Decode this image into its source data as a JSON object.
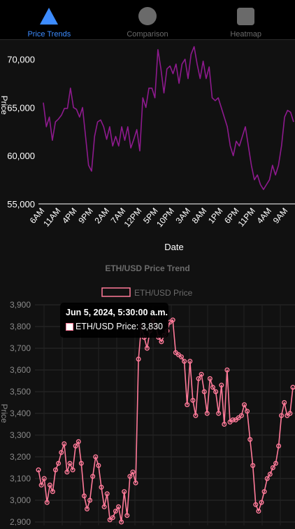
{
  "tabs": [
    {
      "label": "Price Trends",
      "icon": "triangle-icon",
      "active": true
    },
    {
      "label": "Comparison",
      "icon": "circle-icon",
      "active": false
    },
    {
      "label": "Heatmap",
      "icon": "square-icon",
      "active": false
    }
  ],
  "colors": {
    "accent": "#3d8cff",
    "line1": "#8e1a8e",
    "line2": "#ff7a99",
    "axis": "#ffffff",
    "muted": "#6b6b6b"
  },
  "chart_data": [
    {
      "type": "line",
      "title": "",
      "xlabel": "Date",
      "ylabel": "Price",
      "ylim": [
        55000,
        72000
      ],
      "yticks": [
        55000,
        60000,
        65000,
        70000
      ],
      "ytick_labels": [
        "55,000",
        "60,000",
        "65,000",
        "70,000"
      ],
      "xtick_labels": [
        "6AM",
        "11AM",
        "4PM",
        "9PM",
        "2AM",
        "7AM",
        "12PM",
        "5PM",
        "10PM",
        "3AM",
        "8AM",
        "1PM",
        "6PM",
        "11PM",
        "4AM",
        "9AM"
      ],
      "grid": false,
      "series": [
        {
          "values": [
            65500,
            63000,
            64000,
            61600,
            63500,
            63800,
            64200,
            64900,
            64900,
            67000,
            65000,
            64800,
            64000,
            65000,
            62000,
            59000,
            58400,
            62000,
            63500,
            63700,
            63000,
            61700,
            63000,
            61000,
            62000,
            61000,
            63000,
            61600,
            63000,
            60800,
            61700,
            62700,
            60500,
            66000,
            65000,
            67000,
            67000,
            66000,
            71000,
            69000,
            66500,
            69000,
            69300,
            68500,
            69500,
            67500,
            69500,
            70000,
            68000,
            70500,
            71300,
            69500,
            68000,
            69800,
            68000,
            69200,
            66000,
            65700,
            66000,
            65000,
            64000,
            63000,
            61000,
            60000,
            61500,
            61000,
            62000,
            63000,
            61000,
            59000,
            57500,
            58000,
            57000,
            56500,
            57000,
            57500,
            59000,
            58000,
            59000,
            61000,
            64000,
            64700,
            64500,
            63500
          ]
        }
      ]
    },
    {
      "type": "line",
      "title": "ETH/USD Price Trend",
      "ylabel": "Price",
      "ylim": [
        2900,
        3900
      ],
      "yticks": [
        2900,
        3000,
        3100,
        3200,
        3300,
        3400,
        3500,
        3600,
        3700,
        3800,
        3900
      ],
      "ytick_labels": [
        "2,900",
        "3,000",
        "3,100",
        "3,200",
        "3,300",
        "3,400",
        "3,500",
        "3,600",
        "3,700",
        "3,800",
        "3,900"
      ],
      "legend": "top",
      "grid": true,
      "series": [
        {
          "name": "ETH/USD Price",
          "values": [
            3140,
            3070,
            3100,
            2990,
            3070,
            3040,
            3140,
            3170,
            3220,
            3260,
            3130,
            3170,
            3140,
            3250,
            3270,
            3170,
            3020,
            2960,
            3000,
            3110,
            3200,
            3160,
            3060,
            2970,
            3030,
            2910,
            2920,
            2950,
            2970,
            2900,
            3040,
            2930,
            3110,
            3130,
            3080,
            3650,
            3800,
            3750,
            3700,
            3780,
            3830,
            3800,
            3750,
            3730,
            3760,
            3780,
            3820,
            3830,
            3680,
            3670,
            3660,
            3640,
            3440,
            3640,
            3460,
            3390,
            3560,
            3580,
            3500,
            3400,
            3560,
            3520,
            3500,
            3400,
            3530,
            3350,
            3600,
            3360,
            3370,
            3370,
            3380,
            3390,
            3440,
            3410,
            3280,
            3160,
            2980,
            2950,
            2990,
            3040,
            3100,
            3120,
            3150,
            3170,
            3250,
            3390,
            3450,
            3390,
            3400,
            3520
          ]
        }
      ]
    }
  ],
  "tooltip": {
    "title": "Jun 5, 2024, 5:30:00 a.m.",
    "label": "ETH/USD Price: 3,830"
  }
}
